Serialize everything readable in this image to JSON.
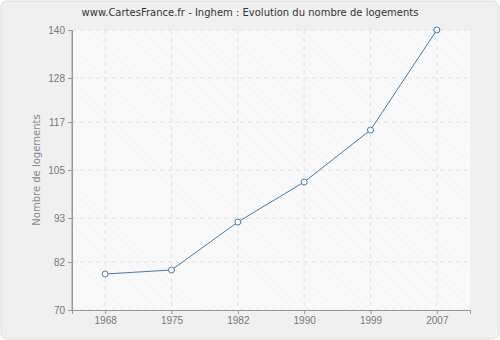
{
  "chart_data": {
    "type": "line",
    "title": "www.CartesFrance.fr - Inghem : Evolution du nombre de logements",
    "y_label": "Nombre de logements",
    "categories": [
      "1968",
      "1975",
      "1982",
      "1990",
      "1999",
      "2007"
    ],
    "values": [
      79,
      80,
      92,
      102,
      115,
      140
    ],
    "color": "#4a78a8",
    "marker": "circle",
    "ylim": [
      70,
      140
    ],
    "yticks": [
      70,
      82,
      93,
      105,
      117,
      128,
      140
    ],
    "grid": true
  }
}
